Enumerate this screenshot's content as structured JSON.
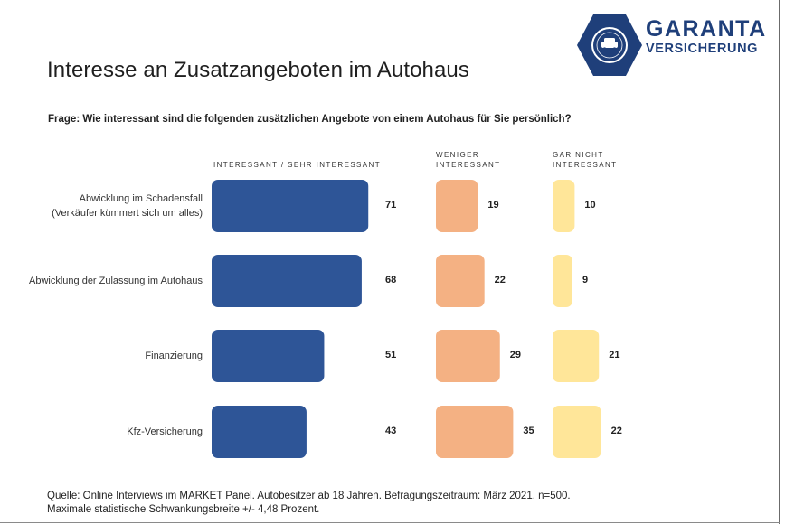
{
  "logo": {
    "line1": "GARANTA",
    "line2": "VERSICHERUNG"
  },
  "title": "Interesse an Zusatzangeboten im Autohaus",
  "question": "Frage: Wie interessant sind die folgenden zusätzlichen Angebote von einem Autohaus für Sie persönlich?",
  "colors": {
    "blue": "#2e5597",
    "orange": "#f4b183",
    "yellow": "#ffe699",
    "brand": "#1f3f7a"
  },
  "chart_data": {
    "type": "bar",
    "orientation": "horizontal",
    "categories": [
      [
        "Abwicklung im Schadensfall",
        "(Verkäufer kümmert sich um alles)"
      ],
      [
        "Abwicklung der Zulassung im Autohaus"
      ],
      [
        "Finanzierung"
      ],
      [
        "Kfz-Versicherung"
      ]
    ],
    "series": [
      {
        "name": "INTERESSANT / SEHR INTERESSANT",
        "values": [
          71,
          68,
          51,
          43
        ]
      },
      {
        "name": "WENIGER INTERESSANT",
        "values": [
          19,
          22,
          29,
          35
        ]
      },
      {
        "name": "GAR NICHT INTERESSANT",
        "values": [
          10,
          9,
          21,
          22
        ]
      }
    ],
    "series_header_lines": [
      [
        "INTERESSANT / SEHR INTERESSANT"
      ],
      [
        "WENIGER",
        "INTERESSANT"
      ],
      [
        "GAR NICHT",
        "INTERESSANT"
      ]
    ]
  },
  "source": {
    "line1": "Quelle: Online Interviews im MARKET Panel. Autobesitzer ab 18 Jahren. Befragungszeitraum: März 2021. n=500.",
    "line2": "Maximale statistische Schwankungsbreite +/- 4,48 Prozent."
  }
}
